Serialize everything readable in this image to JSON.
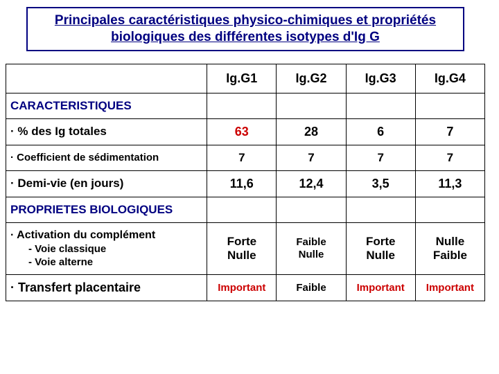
{
  "title": "Principales caractéristiques physico-chimiques et propriétés biologiques des différentes isotypes d'Ig G",
  "headers": {
    "c1": "Ig.G1",
    "c2": "Ig.G2",
    "c3": "Ig.G3",
    "c4": "Ig.G4"
  },
  "section1": "CARACTERISTIQUES",
  "row_pct": {
    "label": "· % des Ig  totales",
    "v1": "63",
    "v1_color": "#cc0000",
    "v2": "28",
    "v3": "6",
    "v4": "7"
  },
  "row_coef": {
    "label": "· Coefficient de sédimentation",
    "v1": "7",
    "v2": "7",
    "v3": "7",
    "v4": "7"
  },
  "row_halflife": {
    "label": "· Demi-vie (en jours)",
    "v1": "11,6",
    "v2": "12,4",
    "v3": "3,5",
    "v4": "11,3"
  },
  "section2": "PROPRIETES BIOLOGIQUES",
  "row_comp": {
    "label_main": "·  Activation du complément",
    "label_sub1": "- Voie classique",
    "label_sub2": "- Voie alterne",
    "v1a": "Forte",
    "v1b": "Nulle",
    "v2a": "Faible",
    "v2b": "Nulle",
    "v3a": "Forte",
    "v3b": "Nulle",
    "v4a": "Nulle",
    "v4b": "Faible"
  },
  "row_trans": {
    "label": "· Transfert placentaire",
    "v1": "Important",
    "v2": "Faible",
    "v3": "Important",
    "v4": "Important"
  },
  "colors": {
    "title": "#000080",
    "accent": "#cc0000",
    "border": "#000000",
    "background": "#ffffff"
  }
}
